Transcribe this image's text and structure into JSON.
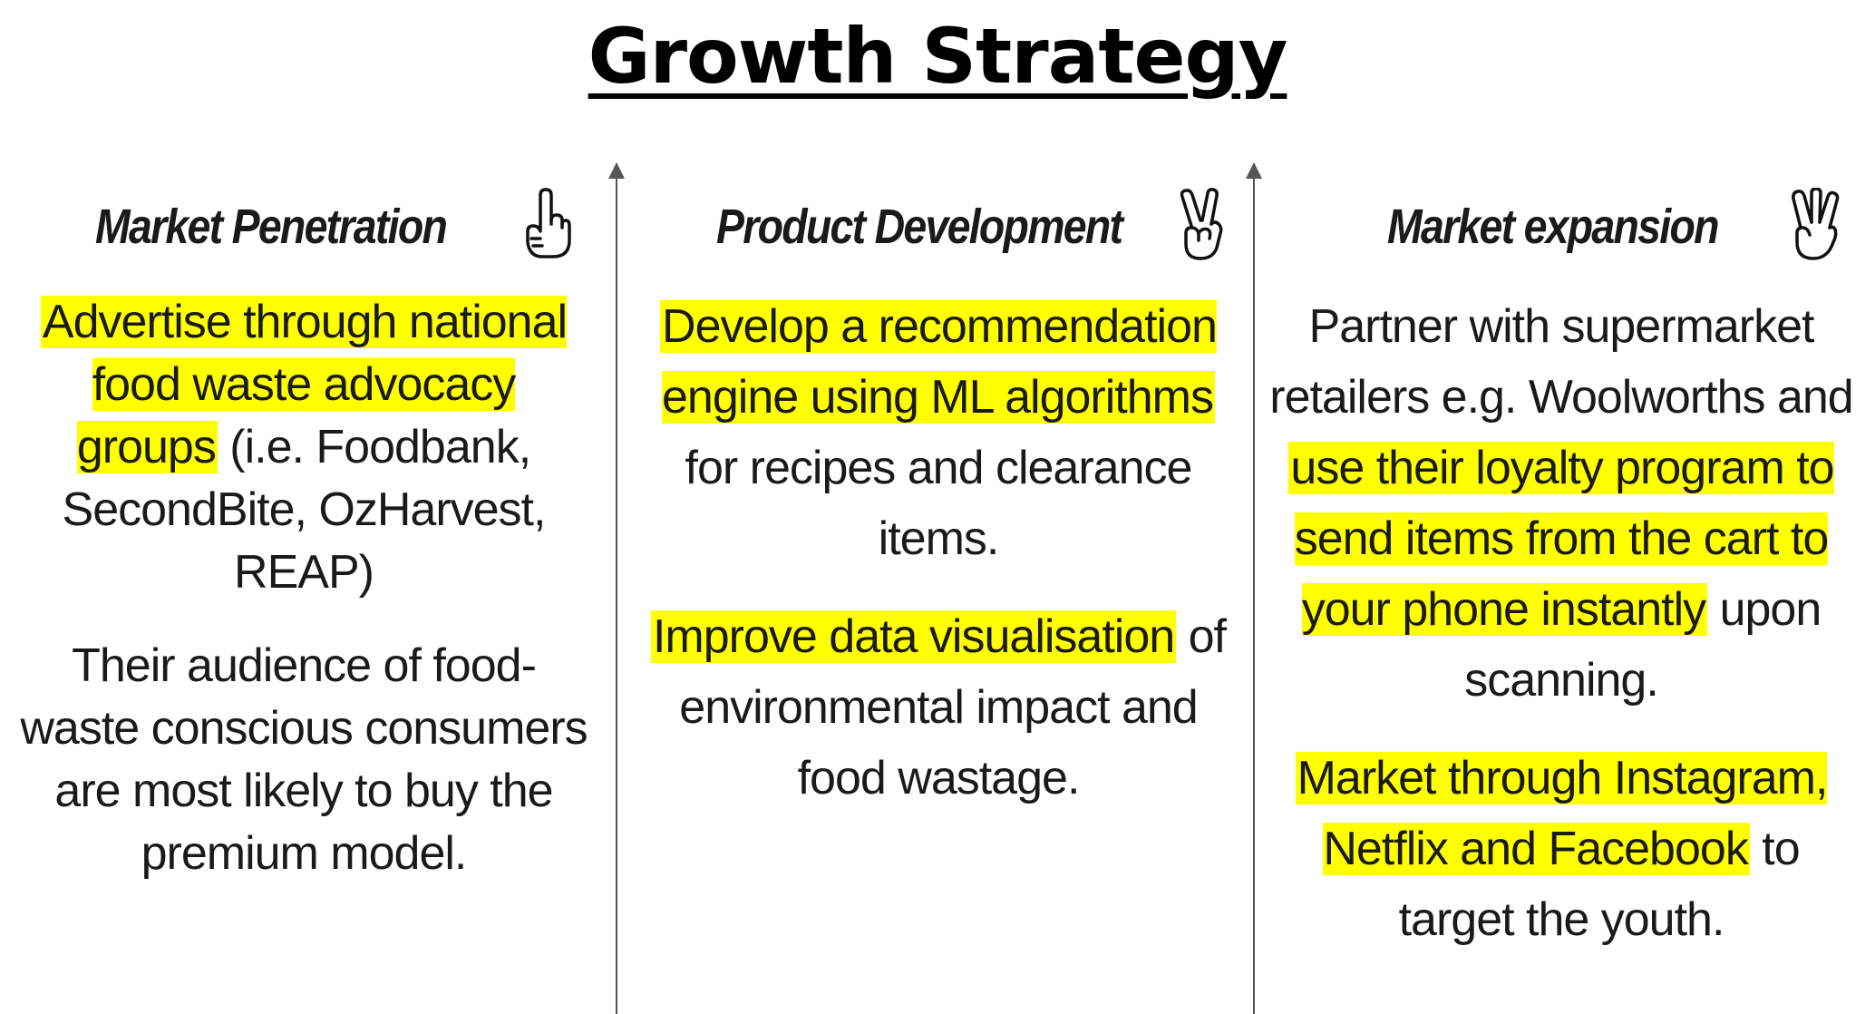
{
  "title": "Growth Strategy",
  "accent_highlight": "#ffff00",
  "columns": [
    {
      "heading": "Market Penetration",
      "icon": "hand-pointing-up-icon",
      "para1": {
        "hl": "Advertise through national food waste advocacy groups",
        "rest": "(i.e. Foodbank, SecondBite, OzHarvest, REAP)"
      },
      "para2": "Their audience of food-waste conscious consumers are most likely to buy the premium model."
    },
    {
      "heading": "Product Development",
      "icon": "peace-hand-icon",
      "para1": {
        "hl": "Develop a recommendation engine using ML algorithms",
        "rest": "for recipes and clearance items."
      },
      "para2": {
        "hl": "Improve data visualisation",
        "rest": "of environmental impact and food wastage."
      }
    },
    {
      "heading": "Market expansion",
      "icon": "three-fingers-hand-icon",
      "para1": {
        "pre": "Partner with supermarket retailers e.g. Woolworths and",
        "hl": "use their loyalty program to send items from the cart to your phone instantly",
        "rest": "upon scanning."
      },
      "para2": {
        "hl": "Market through Instagram, Netflix and Facebook",
        "rest": "to target the youth."
      }
    }
  ]
}
